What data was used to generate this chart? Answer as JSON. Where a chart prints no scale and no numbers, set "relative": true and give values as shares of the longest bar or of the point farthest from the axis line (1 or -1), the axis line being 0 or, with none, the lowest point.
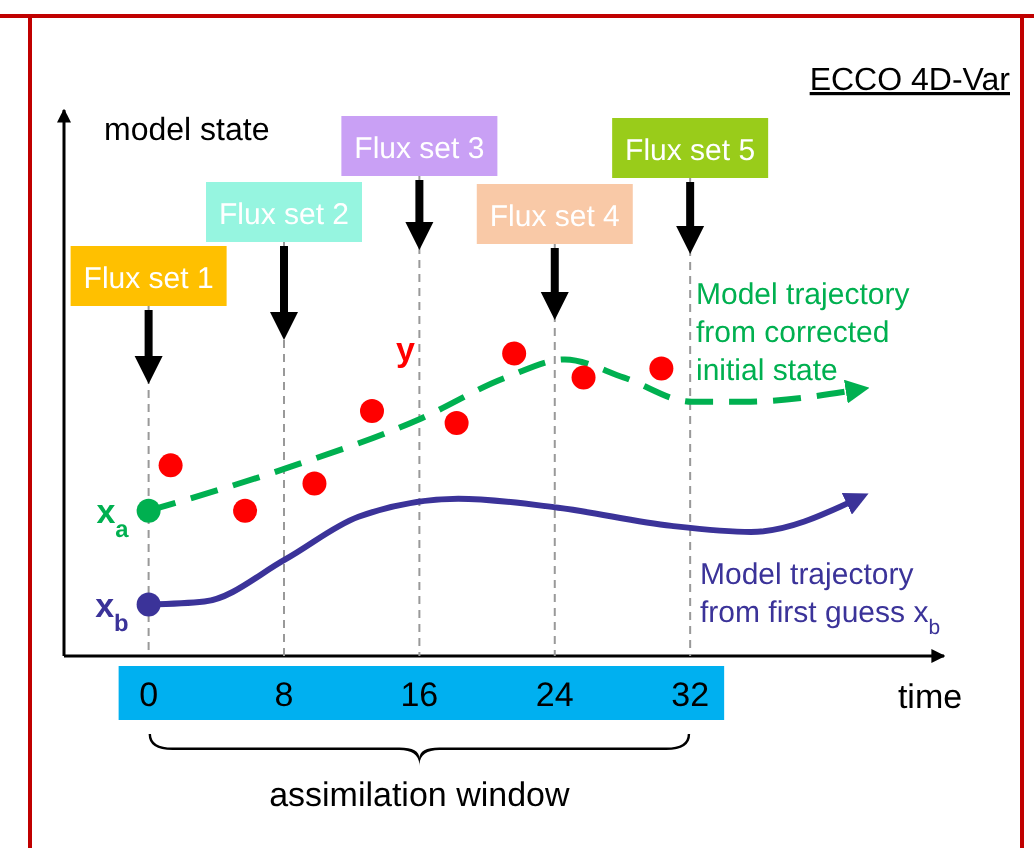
{
  "chart_data": {
    "type": "line",
    "title": "ECCO 4D-Var",
    "xlabel": "time",
    "relative": true,
    "xlim": [
      -5,
      47
    ],
    "xticks": [
      0,
      8,
      16,
      24,
      32
    ],
    "legend": false,
    "grid": false,
    "series": [
      {
        "name": "Model trajectory from corrected initial state",
        "color": "#00b050",
        "line_style": "dashed",
        "marker": "none",
        "x": [
          0,
          8.1,
          15.9,
          21.1,
          24.6,
          28.1,
          32.1,
          35.2,
          41.9
        ],
        "values": [
          0.48,
          0.62,
          0.78,
          0.92,
          0.98,
          0.92,
          0.84,
          0.84,
          0.88
        ]
      },
      {
        "name": "Model trajectory from first guess x$_{b}$",
        "color": "#3b3399",
        "line_style": "solid",
        "marker": "none",
        "x": [
          0,
          3.3,
          8.1,
          12.4,
          18.3,
          24.2,
          30.9,
          35.6,
          41.9
        ],
        "values": [
          0.17,
          0.18,
          0.32,
          0.46,
          0.52,
          0.49,
          0.43,
          0.41,
          0.52
        ]
      },
      {
        "name": "y",
        "type": "scatter",
        "color": "#ff0000",
        "marker": "circle",
        "x": [
          1.3,
          5.7,
          9.8,
          13.2,
          18.2,
          21.6,
          25.7,
          30.3
        ],
        "values": [
          0.63,
          0.48,
          0.57,
          0.81,
          0.77,
          1.0,
          0.92,
          0.95
        ]
      }
    ],
    "ref_lines": [
      {
        "axis": "x",
        "value": 0,
        "label": "Flux set 1",
        "color": "#999999",
        "line_style": "dashed"
      },
      {
        "axis": "x",
        "value": 8,
        "label": "Flux set 2",
        "color": "#999999",
        "line_style": "dashed"
      },
      {
        "axis": "x",
        "value": 16,
        "label": "Flux set 3",
        "color": "#999999",
        "line_style": "dashed"
      },
      {
        "axis": "x",
        "value": 24,
        "label": "Flux set 4",
        "color": "#999999",
        "line_style": "dashed"
      },
      {
        "axis": "x",
        "value": 32,
        "label": "Flux set 5",
        "color": "#999999",
        "line_style": "dashed"
      }
    ],
    "annotations": [
      {
        "text": "x$_{a}$",
        "x": 0,
        "y": 0.48
      },
      {
        "text": "x$_{b}$",
        "x": 0,
        "y": 0.17
      },
      "model state",
      "assimilation window"
    ]
  }
}
